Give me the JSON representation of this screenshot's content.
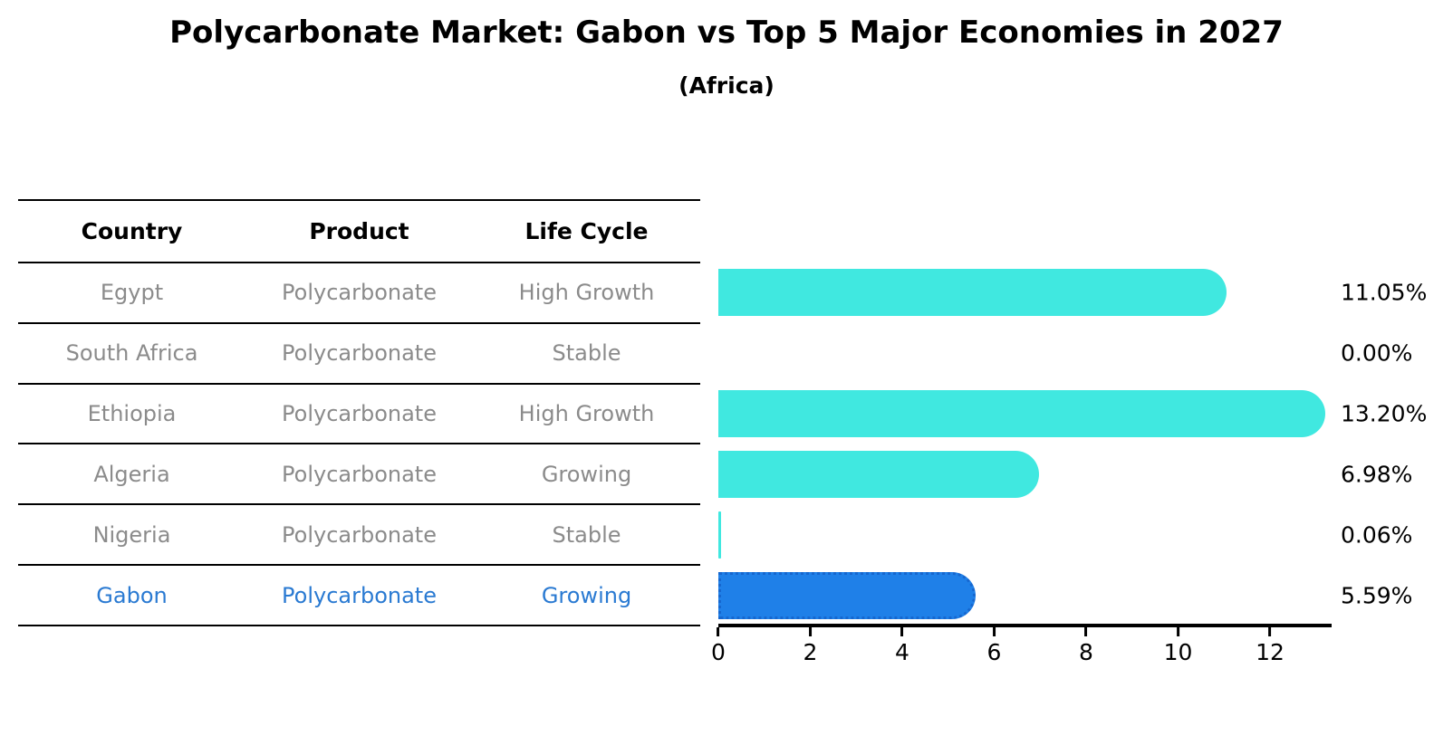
{
  "title": "Polycarbonate Market: Gabon vs Top 5 Major Economies in 2027",
  "subtitle": "(Africa)",
  "table": {
    "headers": [
      "Country",
      "Product",
      "Life Cycle"
    ]
  },
  "colors": {
    "bar_default": "#40e8e0",
    "bar_highlight": "#1f80e8",
    "bar_highlight_border": "#1667cf",
    "highlight_text": "#2a7ad2",
    "table_text": "#8b8b8b",
    "axis": "#000000"
  },
  "chart_data": {
    "type": "bar",
    "orientation": "horizontal",
    "title": "Polycarbonate Market: Gabon vs Top 5 Major Economies in 2027",
    "subtitle": "(Africa)",
    "xlabel": "",
    "ylabel": "",
    "xlim": [
      0,
      13.34
    ],
    "x_ticks": [
      0,
      2,
      4,
      6,
      8,
      10,
      12
    ],
    "grid": false,
    "legend": false,
    "value_format": "percent",
    "rows": [
      {
        "country": "Egypt",
        "product": "Polycarbonate",
        "life_cycle": "High Growth",
        "value": 11.05,
        "label": "11.05%",
        "highlight": false
      },
      {
        "country": "South Africa",
        "product": "Polycarbonate",
        "life_cycle": "Stable",
        "value": 0.0,
        "label": "0.00%",
        "highlight": false
      },
      {
        "country": "Ethiopia",
        "product": "Polycarbonate",
        "life_cycle": "High Growth",
        "value": 13.2,
        "label": "13.20%",
        "highlight": false
      },
      {
        "country": "Algeria",
        "product": "Polycarbonate",
        "life_cycle": "Growing",
        "value": 6.98,
        "label": "6.98%",
        "highlight": false
      },
      {
        "country": "Nigeria",
        "product": "Polycarbonate",
        "life_cycle": "Stable",
        "value": 0.06,
        "label": "0.06%",
        "highlight": false
      },
      {
        "country": "Gabon",
        "product": "Polycarbonate",
        "life_cycle": "Growing",
        "value": 5.59,
        "label": "5.59%",
        "highlight": true
      }
    ]
  }
}
